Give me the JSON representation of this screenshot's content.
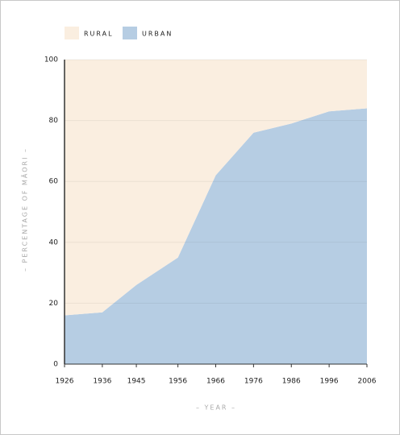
{
  "chart_data": {
    "type": "stacked-area",
    "x": [
      1926,
      1936,
      1945,
      1956,
      1966,
      1976,
      1986,
      1996,
      2006
    ],
    "series": [
      {
        "name": "RURAL",
        "color": "#faeee0",
        "values": [
          84,
          83,
          74,
          65,
          38,
          24,
          21,
          17,
          16
        ]
      },
      {
        "name": "URBAN",
        "color": "#b6cde3",
        "values": [
          16,
          17,
          26,
          35,
          62,
          76,
          79,
          83,
          84
        ]
      }
    ],
    "xlim": [
      1926,
      2006
    ],
    "xticks": [
      1926,
      1936,
      1945,
      1956,
      1966,
      1976,
      1986,
      1996,
      2006
    ],
    "ylim": [
      0,
      100
    ],
    "yticks": [
      0,
      20,
      40,
      60,
      80,
      100
    ],
    "x_label": "– YEAR –",
    "y_label": "– PERCENTAGE OF MĀORI –",
    "grid": true
  }
}
